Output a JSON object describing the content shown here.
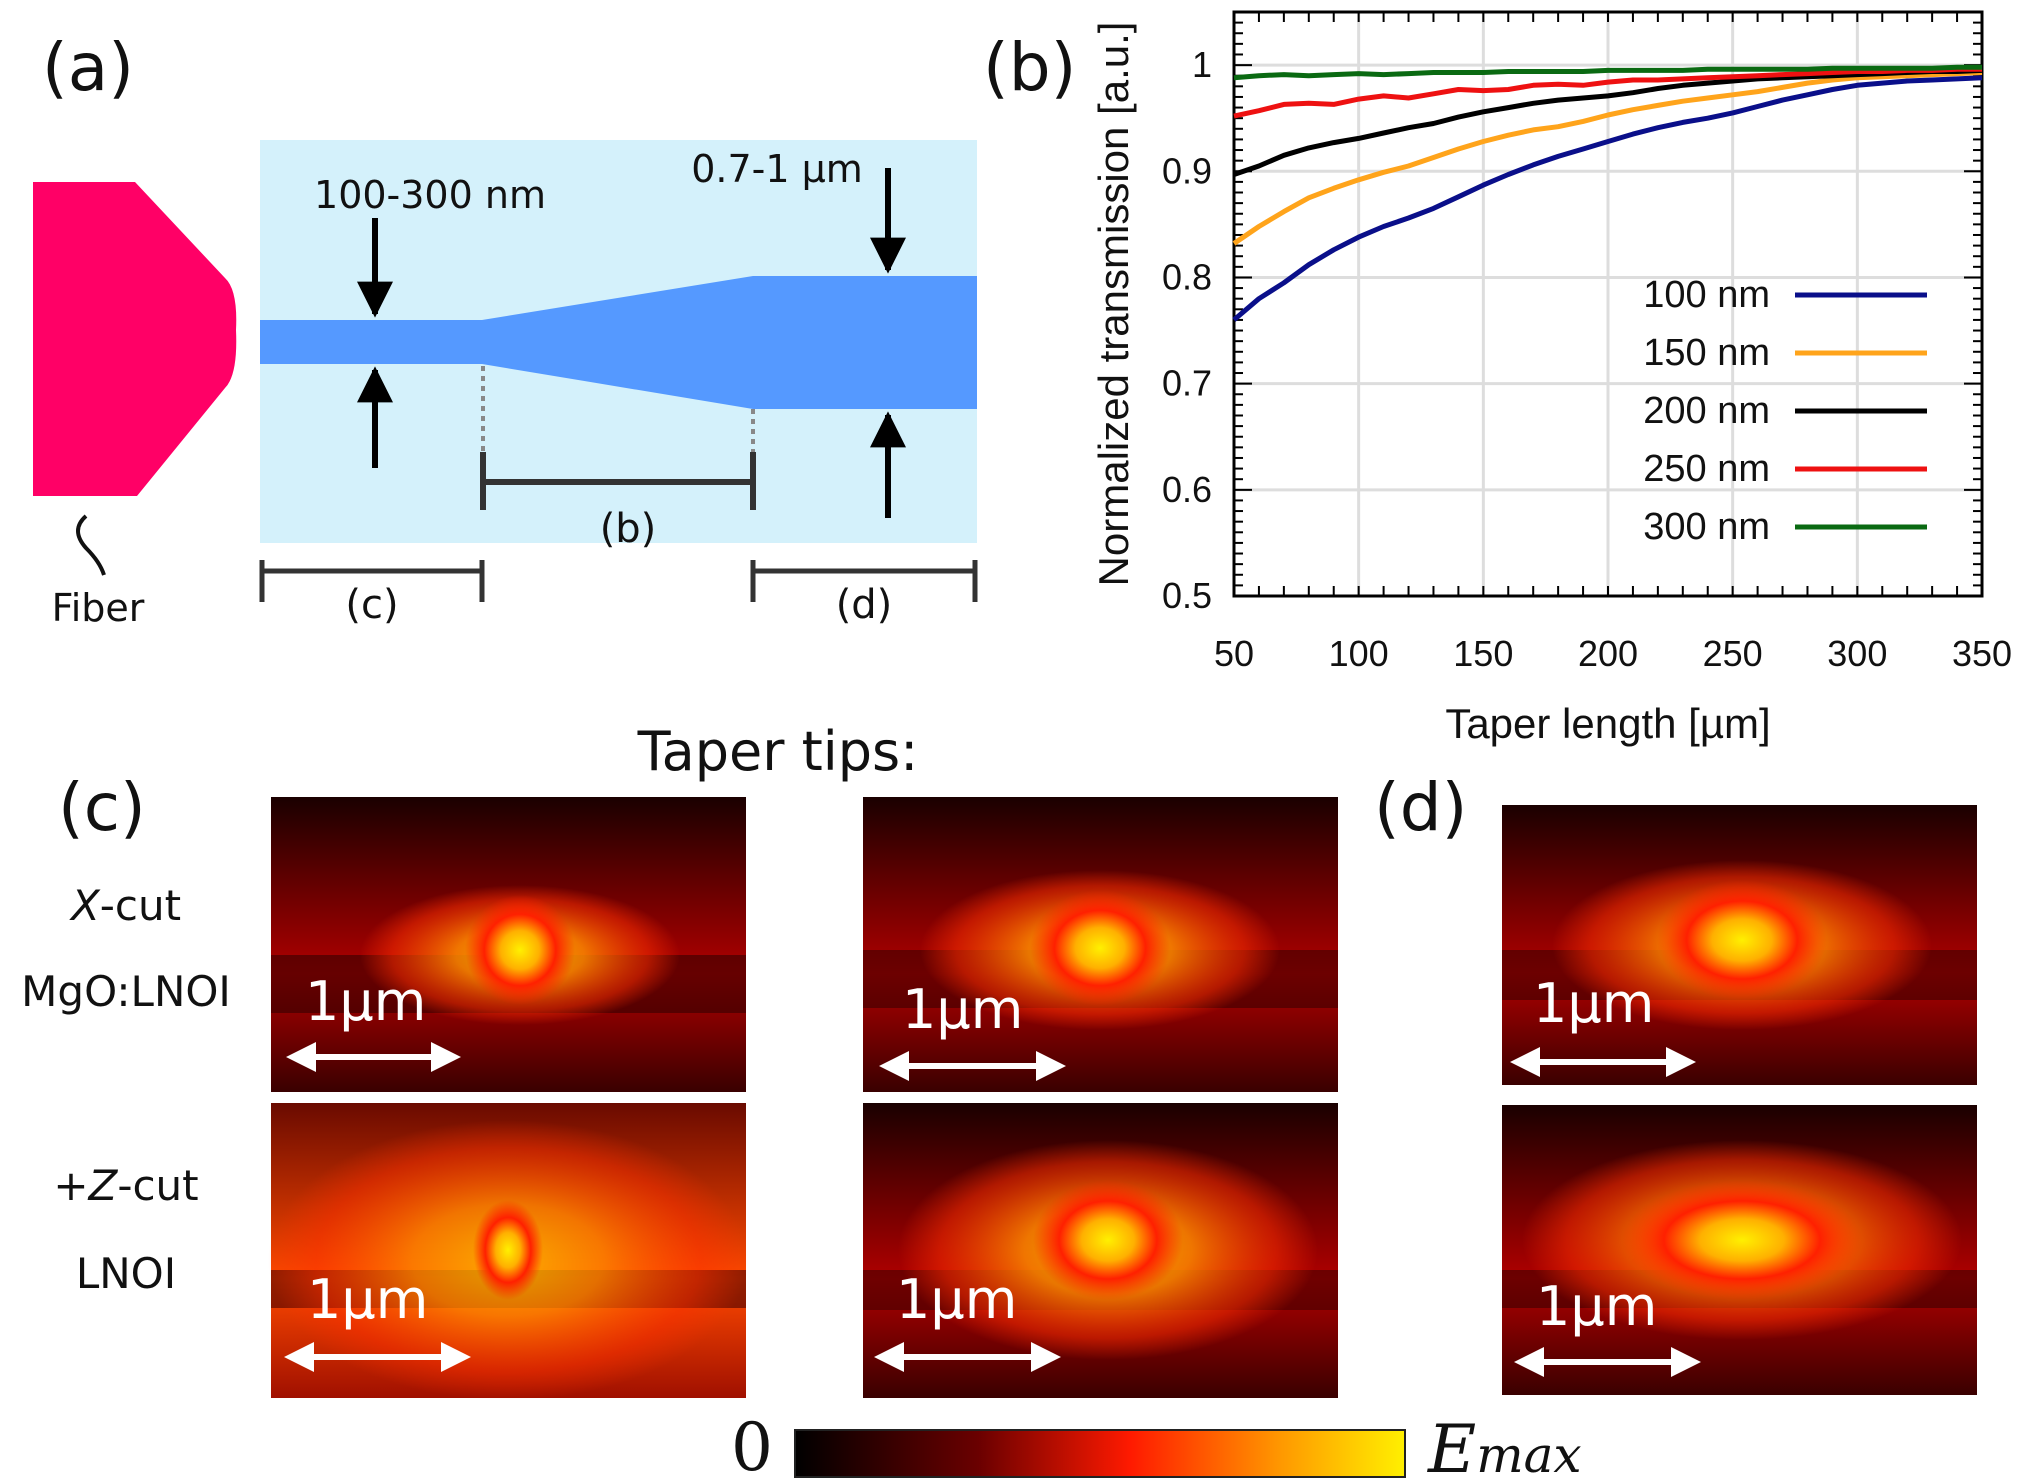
{
  "panels": {
    "a": {
      "letter": "(a)",
      "fiber_label": "Fiber",
      "tip_width": "100-300 nm",
      "wg_width": "0.7-1 µm",
      "section_b": "(b)",
      "section_c": "(c)",
      "section_d": "(d)",
      "colors": {
        "fiber": "#ff0066",
        "cladding": "#d4f1fb",
        "waveguide": "#5599ff"
      }
    },
    "b": {
      "letter": "(b)"
    },
    "c": {
      "letter": "(c)",
      "heading": "Taper tips:",
      "row1_line1": "X-cut",
      "row1_line1_italic": "X",
      "row1_line1_rest": "-cut",
      "row1_line2": "MgO:LNOI",
      "row2_line1_pre": "+",
      "row2_line1_italic": "Z",
      "row2_line1_rest": "-cut",
      "row2_line2": "LNOI",
      "scale": "1µm"
    },
    "d": {
      "letter": "(d)",
      "scale": "1µm"
    }
  },
  "colorbar": {
    "min_label": "0",
    "max_label": "E",
    "max_sub": "max"
  },
  "chart_data": {
    "type": "line",
    "xlabel": "Taper length [µm]",
    "ylabel": "Normalized transmission [a.u.]",
    "xlim": [
      50,
      350
    ],
    "ylim": [
      0.5,
      1.05
    ],
    "xticks": [
      50,
      100,
      150,
      200,
      250,
      300,
      350
    ],
    "yticks": [
      0.5,
      0.6,
      0.7,
      0.8,
      0.9,
      1
    ],
    "grid": true,
    "legend_position": "bottom-right",
    "series": [
      {
        "name": "100 nm",
        "color": "#0a0f8a",
        "x": [
          50,
          60,
          70,
          80,
          90,
          100,
          110,
          120,
          130,
          140,
          150,
          160,
          170,
          180,
          190,
          200,
          210,
          220,
          230,
          240,
          250,
          260,
          270,
          280,
          290,
          300,
          310,
          320,
          330,
          340,
          350
        ],
        "y": [
          0.76,
          0.78,
          0.795,
          0.812,
          0.826,
          0.838,
          0.848,
          0.856,
          0.865,
          0.876,
          0.887,
          0.897,
          0.906,
          0.914,
          0.921,
          0.928,
          0.935,
          0.941,
          0.946,
          0.95,
          0.955,
          0.961,
          0.967,
          0.972,
          0.977,
          0.981,
          0.983,
          0.985,
          0.986,
          0.987,
          0.988
        ]
      },
      {
        "name": "150 nm",
        "color": "#ffa41b",
        "x": [
          50,
          60,
          70,
          80,
          90,
          100,
          110,
          120,
          130,
          140,
          150,
          160,
          170,
          180,
          190,
          200,
          210,
          220,
          230,
          240,
          250,
          260,
          270,
          280,
          290,
          300,
          310,
          320,
          330,
          340,
          350
        ],
        "y": [
          0.832,
          0.848,
          0.862,
          0.875,
          0.884,
          0.892,
          0.899,
          0.905,
          0.913,
          0.921,
          0.928,
          0.934,
          0.939,
          0.942,
          0.947,
          0.953,
          0.958,
          0.962,
          0.966,
          0.969,
          0.972,
          0.975,
          0.979,
          0.983,
          0.986,
          0.988,
          0.989,
          0.99,
          0.991,
          0.992,
          0.993
        ]
      },
      {
        "name": "200 nm",
        "color": "#000000",
        "x": [
          50,
          60,
          70,
          80,
          90,
          100,
          110,
          120,
          130,
          140,
          150,
          160,
          170,
          180,
          190,
          200,
          210,
          220,
          230,
          240,
          250,
          260,
          270,
          280,
          290,
          300,
          310,
          320,
          330,
          340,
          350
        ],
        "y": [
          0.897,
          0.905,
          0.915,
          0.922,
          0.927,
          0.931,
          0.936,
          0.941,
          0.945,
          0.951,
          0.956,
          0.96,
          0.964,
          0.967,
          0.969,
          0.971,
          0.974,
          0.978,
          0.981,
          0.983,
          0.985,
          0.987,
          0.988,
          0.989,
          0.99,
          0.991,
          0.992,
          0.993,
          0.994,
          0.994,
          0.995
        ]
      },
      {
        "name": "250 nm",
        "color": "#ee1111",
        "x": [
          50,
          60,
          70,
          80,
          90,
          100,
          110,
          120,
          130,
          140,
          150,
          160,
          170,
          180,
          190,
          200,
          210,
          220,
          230,
          240,
          250,
          260,
          270,
          280,
          290,
          300,
          310,
          320,
          330,
          340,
          350
        ],
        "y": [
          0.952,
          0.957,
          0.963,
          0.964,
          0.963,
          0.968,
          0.971,
          0.969,
          0.973,
          0.977,
          0.976,
          0.977,
          0.981,
          0.982,
          0.981,
          0.984,
          0.986,
          0.986,
          0.987,
          0.988,
          0.989,
          0.99,
          0.991,
          0.992,
          0.993,
          0.994,
          0.994,
          0.995,
          0.995,
          0.996,
          0.996
        ]
      },
      {
        "name": "300 nm",
        "color": "#0a6a12",
        "x": [
          50,
          60,
          70,
          80,
          90,
          100,
          110,
          120,
          130,
          140,
          150,
          160,
          170,
          180,
          190,
          200,
          210,
          220,
          230,
          240,
          250,
          260,
          270,
          280,
          290,
          300,
          310,
          320,
          330,
          340,
          350
        ],
        "y": [
          0.988,
          0.99,
          0.991,
          0.99,
          0.991,
          0.992,
          0.991,
          0.992,
          0.993,
          0.993,
          0.993,
          0.994,
          0.994,
          0.994,
          0.994,
          0.995,
          0.995,
          0.995,
          0.995,
          0.996,
          0.996,
          0.996,
          0.996,
          0.996,
          0.997,
          0.997,
          0.997,
          0.997,
          0.997,
          0.998,
          0.998
        ]
      }
    ]
  }
}
